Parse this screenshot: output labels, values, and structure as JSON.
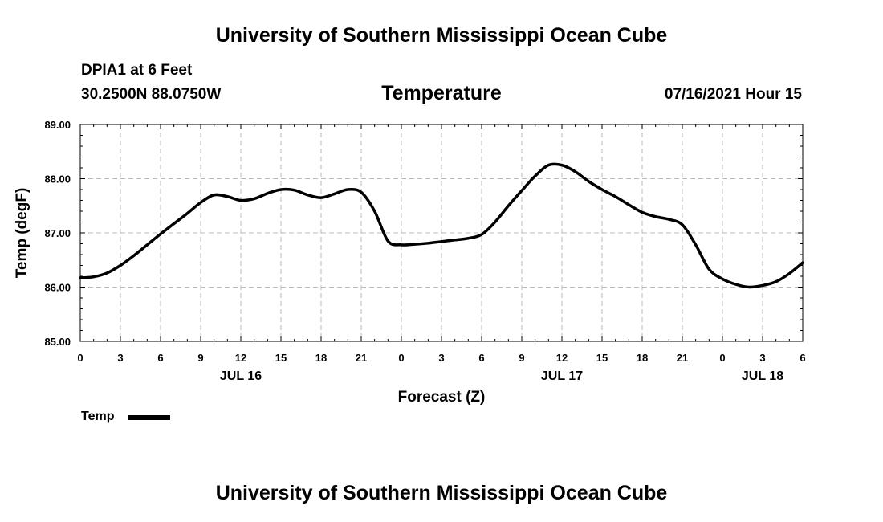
{
  "header": {
    "title_top": "University of Southern Mississippi Ocean Cube",
    "station": "DPIA1 at 6 Feet",
    "coords": "30.2500N  88.0750W",
    "variable": "Temperature",
    "datetime": "07/16/2021 Hour 15",
    "title_bottom": "University of Southern Mississippi Ocean Cube"
  },
  "legend": {
    "label": "Temp"
  },
  "colors": {
    "line": "#000000",
    "grid": "#bbbbbb",
    "background": "#ffffff"
  },
  "chart_data": {
    "type": "line",
    "title": "Temperature",
    "xlabel": "Forecast (Z)",
    "ylabel": "Temp (degF)",
    "ylim": [
      85.0,
      89.0
    ],
    "xlim": [
      0,
      54
    ],
    "yticks": [
      "85.00",
      "86.00",
      "87.00",
      "88.00",
      "89.00"
    ],
    "ytick_values": [
      85,
      86,
      87,
      88,
      89
    ],
    "xticks": [
      "0",
      "3",
      "6",
      "9",
      "12",
      "15",
      "18",
      "21",
      "0",
      "3",
      "6",
      "9",
      "12",
      "15",
      "18",
      "21",
      "0",
      "3",
      "6"
    ],
    "date_labels": [
      {
        "label": "JUL 16",
        "hour": 12
      },
      {
        "label": "JUL 17",
        "hour": 36
      },
      {
        "label": "JUL 18",
        "hour": 51
      }
    ],
    "grid": true,
    "series": [
      {
        "name": "Temp",
        "x": [
          0,
          1,
          2,
          3,
          4,
          5,
          6,
          7,
          8,
          9,
          10,
          11,
          12,
          13,
          14,
          15,
          16,
          17,
          18,
          19,
          20,
          21,
          22,
          23,
          24,
          25,
          26,
          27,
          28,
          29,
          30,
          31,
          32,
          33,
          34,
          35,
          36,
          37,
          38,
          39,
          40,
          41,
          42,
          43,
          44,
          45,
          46,
          47,
          48,
          49,
          50,
          51,
          52,
          53,
          54
        ],
        "values": [
          86.17,
          86.19,
          86.26,
          86.4,
          86.58,
          86.78,
          86.98,
          87.17,
          87.36,
          87.56,
          87.7,
          87.67,
          87.6,
          87.63,
          87.73,
          87.8,
          87.79,
          87.7,
          87.65,
          87.72,
          87.8,
          87.75,
          87.4,
          86.85,
          86.78,
          86.79,
          86.81,
          86.84,
          86.87,
          86.9,
          86.97,
          87.2,
          87.5,
          87.78,
          88.05,
          88.25,
          88.25,
          88.13,
          87.95,
          87.8,
          87.67,
          87.52,
          87.38,
          87.3,
          87.25,
          87.15,
          86.78,
          86.33,
          86.15,
          86.05,
          86.0,
          86.03,
          86.1,
          86.25,
          86.45
        ]
      }
    ]
  }
}
